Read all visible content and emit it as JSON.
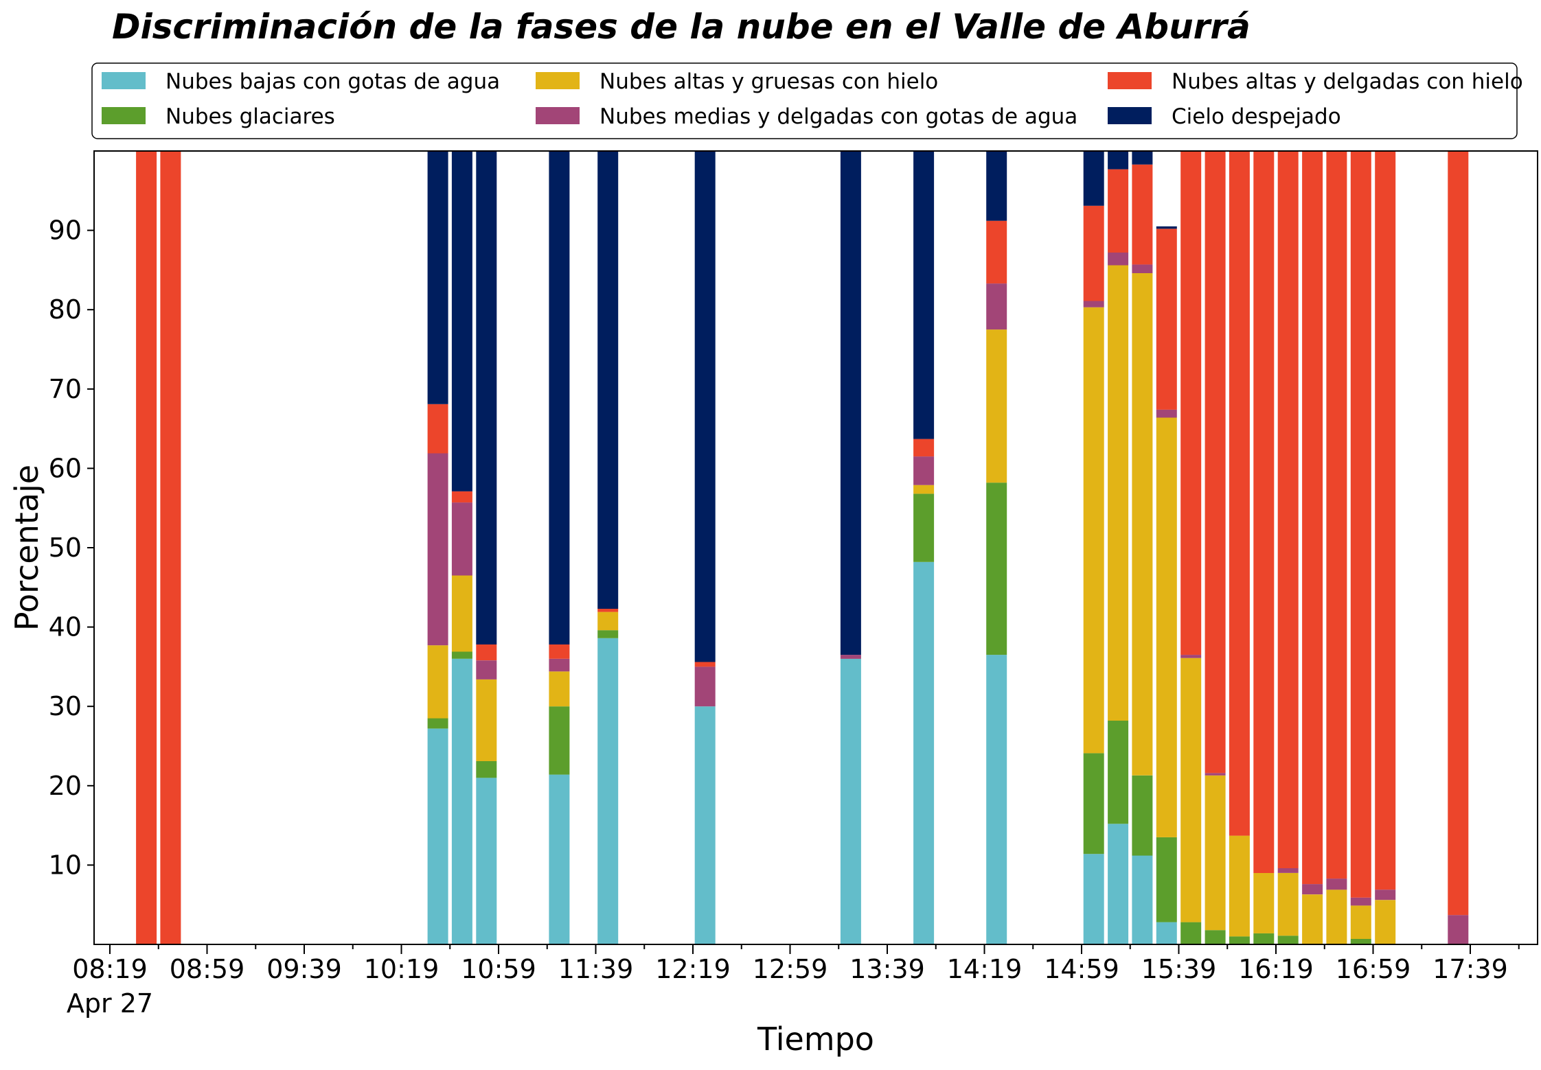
{
  "chart_data": {
    "type": "bar",
    "stacked": true,
    "title": "Discriminación de la fases de la nube en el Valle de Aburrá",
    "xlabel": "Tiempo",
    "ylabel": "Porcentaje",
    "ylim": [
      0,
      100
    ],
    "yticks": [
      10,
      20,
      30,
      40,
      50,
      60,
      70,
      80,
      90
    ],
    "xticks": [
      "08:19",
      "08:59",
      "09:39",
      "10:19",
      "10:59",
      "11:39",
      "12:19",
      "12:59",
      "13:39",
      "14:19",
      "14:59",
      "15:39",
      "16:19",
      "16:59",
      "17:39"
    ],
    "xtick_date": "Apr 27",
    "legend_position": "top",
    "grid": false,
    "x": [
      "08:34",
      "08:44",
      "10:34",
      "10:44",
      "10:54",
      "11:24",
      "11:44",
      "12:24",
      "13:24",
      "13:54",
      "14:24",
      "15:04",
      "15:14",
      "15:24",
      "15:34",
      "15:44",
      "15:54",
      "16:04",
      "16:14",
      "16:24",
      "16:34",
      "16:44",
      "16:54",
      "17:04",
      "17:34"
    ],
    "series": [
      {
        "name": "Nubes bajas con gotas de agua",
        "color": "#63BDCA",
        "values": [
          0,
          0,
          27.2,
          36,
          21,
          21.4,
          38.6,
          30,
          36,
          48.2,
          36.5,
          11.4,
          15.2,
          11.2,
          2.8,
          0,
          0,
          0,
          0,
          0,
          0,
          0,
          0,
          0,
          0
        ]
      },
      {
        "name": "Nubes glaciares",
        "color": "#5C9E2C",
        "values": [
          0,
          0,
          1.3,
          0.9,
          2.1,
          8.6,
          1,
          0,
          0,
          8.6,
          21.7,
          12.7,
          13,
          10.1,
          10.7,
          2.8,
          1.8,
          1,
          1.4,
          1.1,
          0,
          0,
          0.7,
          0,
          0
        ]
      },
      {
        "name": "Nubes altas y gruesas con hielo",
        "color": "#E2B416",
        "values": [
          0,
          0,
          9.2,
          9.6,
          10.3,
          4.4,
          2.3,
          0,
          0,
          1.1,
          19.3,
          56.2,
          57.4,
          63.3,
          52.9,
          33.3,
          19.5,
          12.7,
          7.6,
          7.9,
          6.3,
          6.9,
          4.2,
          5.6,
          0
        ]
      },
      {
        "name": "Nubes medias y delgadas con gotas de agua",
        "color": "#A24577",
        "values": [
          0,
          0,
          24.2,
          9.2,
          2.4,
          1.6,
          0,
          5,
          0.5,
          3.6,
          5.8,
          0.8,
          1.6,
          1.1,
          1,
          0.4,
          0.3,
          0,
          0,
          0.6,
          1.3,
          1.4,
          1,
          1.3,
          3.7
        ]
      },
      {
        "name": "Nubes altas y delgadas con hielo",
        "color": "#EC452B",
        "values": [
          100,
          100,
          6.2,
          1.4,
          2,
          1.8,
          0.4,
          0.6,
          0,
          2.2,
          7.9,
          12,
          10.5,
          12.6,
          22.8,
          63.5,
          78.4,
          86.3,
          91,
          90.4,
          92.4,
          91.7,
          94.1,
          93.1,
          96.3
        ]
      },
      {
        "name": "Cielo despejado",
        "color": "#001E5E",
        "values": [
          0,
          0,
          31.9,
          42.9,
          62.2,
          62.2,
          57.7,
          64.4,
          63.5,
          36.3,
          8.8,
          6.9,
          2.3,
          1.7,
          0.3,
          0,
          0,
          0,
          0,
          0,
          0,
          0,
          0,
          0,
          0
        ]
      }
    ]
  }
}
